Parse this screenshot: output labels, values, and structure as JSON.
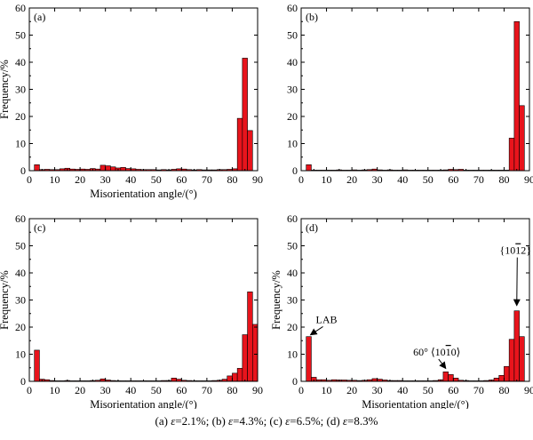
{
  "chart_data": [
    {
      "type": "bar",
      "panel_label": "(a)",
      "xlabel": "Misorientation angle/(°)",
      "ylabel": "Frequency/%",
      "xlim": [
        0,
        90
      ],
      "ylim": [
        0,
        60
      ],
      "xticks": [
        "0",
        "10",
        "20",
        "30",
        "40",
        "50",
        "60",
        "70",
        "80",
        "90"
      ],
      "yticks": [
        "0",
        "10",
        "20",
        "30",
        "40",
        "50",
        "60"
      ],
      "bin_width": 2,
      "bar_color": "#e8141c",
      "x": [
        3,
        5,
        7,
        9,
        11,
        13,
        15,
        17,
        19,
        21,
        23,
        25,
        27,
        29,
        31,
        33,
        35,
        37,
        39,
        41,
        43,
        45,
        47,
        49,
        51,
        53,
        55,
        57,
        59,
        61,
        63,
        65,
        67,
        69,
        71,
        73,
        75,
        77,
        79,
        81,
        83,
        85,
        87,
        89
      ],
      "values": [
        2.2,
        0.4,
        0.5,
        0.4,
        0.4,
        0.7,
        0.9,
        0.6,
        0.5,
        0.6,
        0.5,
        0.8,
        0.6,
        2.0,
        1.8,
        1.4,
        1.0,
        1.2,
        0.8,
        0.7,
        0.5,
        0.4,
        0.4,
        0.4,
        0.3,
        0.4,
        0.3,
        0.5,
        0.7,
        0.6,
        0.4,
        0.3,
        0.4,
        0.3,
        0.3,
        0.3,
        0.4,
        0.4,
        0.5,
        0.7,
        19.3,
        41.5,
        14.8,
        0.0
      ]
    },
    {
      "type": "bar",
      "panel_label": "(b)",
      "xlabel": "",
      "ylabel": "",
      "xlim": [
        0,
        90
      ],
      "ylim": [
        0,
        60
      ],
      "xticks": [
        "0",
        "10",
        "20",
        "30",
        "40",
        "50",
        "60",
        "70",
        "80",
        "90"
      ],
      "yticks": [
        "0",
        "10",
        "20",
        "30",
        "40",
        "50",
        "60"
      ],
      "bin_width": 2,
      "bar_color": "#e8141c",
      "x": [
        3,
        5,
        7,
        9,
        11,
        13,
        15,
        17,
        19,
        21,
        23,
        25,
        27,
        29,
        31,
        33,
        35,
        37,
        39,
        41,
        43,
        45,
        47,
        49,
        51,
        53,
        55,
        57,
        59,
        61,
        63,
        65,
        67,
        69,
        71,
        73,
        75,
        77,
        79,
        81,
        83,
        85,
        87,
        89
      ],
      "values": [
        2.2,
        0.2,
        0.2,
        0.2,
        0.2,
        0.2,
        0.3,
        0.2,
        0.2,
        0.3,
        0.2,
        0.3,
        0.4,
        0.6,
        0.3,
        0.2,
        0.3,
        0.2,
        0.2,
        0.3,
        0.2,
        0.2,
        0.2,
        0.2,
        0.2,
        0.2,
        0.2,
        0.3,
        0.5,
        0.4,
        0.5,
        0.2,
        0.2,
        0.2,
        0.2,
        0.2,
        0.2,
        0.2,
        0.2,
        0.2,
        12.0,
        55.0,
        24.0,
        0.0
      ]
    },
    {
      "type": "bar",
      "panel_label": "(c)",
      "xlabel": "Misorientation angle/(°)",
      "ylabel": "Frequency/%",
      "xlim": [
        0,
        90
      ],
      "ylim": [
        0,
        60
      ],
      "xticks": [
        "0",
        "10",
        "20",
        "30",
        "40",
        "50",
        "60",
        "70",
        "80",
        "90"
      ],
      "yticks": [
        "0",
        "10",
        "20",
        "30",
        "40",
        "50",
        "60"
      ],
      "bin_width": 2,
      "bar_color": "#e8141c",
      "x": [
        3,
        5,
        7,
        9,
        11,
        13,
        15,
        17,
        19,
        21,
        23,
        25,
        27,
        29,
        31,
        33,
        35,
        37,
        39,
        41,
        43,
        45,
        47,
        49,
        51,
        53,
        55,
        57,
        59,
        61,
        63,
        65,
        67,
        69,
        71,
        73,
        75,
        77,
        79,
        81,
        83,
        85,
        87,
        89
      ],
      "values": [
        11.5,
        0.8,
        0.6,
        0.3,
        0.2,
        0.2,
        0.3,
        0.2,
        0.2,
        0.2,
        0.2,
        0.3,
        0.4,
        0.9,
        0.5,
        0.3,
        0.2,
        0.2,
        0.2,
        0.2,
        0.2,
        0.2,
        0.2,
        0.2,
        0.2,
        0.3,
        0.3,
        1.2,
        0.8,
        0.4,
        0.3,
        0.2,
        0.2,
        0.2,
        0.2,
        0.3,
        0.4,
        0.8,
        2.0,
        3.0,
        4.8,
        17.2,
        33.0,
        21.0
      ]
    },
    {
      "type": "bar",
      "panel_label": "(d)",
      "xlabel": "Misorientation angle/(°)",
      "ylabel": "Frequency/%",
      "xlim": [
        0,
        90
      ],
      "ylim": [
        0,
        60
      ],
      "xticks": [
        "0",
        "10",
        "20",
        "30",
        "40",
        "50",
        "60",
        "70",
        "80",
        "90"
      ],
      "yticks": [
        "0",
        "10",
        "20",
        "30",
        "40",
        "50",
        "60"
      ],
      "bin_width": 2,
      "bar_color": "#e8141c",
      "x": [
        3,
        5,
        7,
        9,
        11,
        13,
        15,
        17,
        19,
        21,
        23,
        25,
        27,
        29,
        31,
        33,
        35,
        37,
        39,
        41,
        43,
        45,
        47,
        49,
        51,
        53,
        55,
        57,
        59,
        61,
        63,
        65,
        67,
        69,
        71,
        73,
        75,
        77,
        79,
        81,
        83,
        85,
        87,
        89
      ],
      "values": [
        16.5,
        1.5,
        0.6,
        0.6,
        0.4,
        0.6,
        0.5,
        0.5,
        0.4,
        0.4,
        0.3,
        0.4,
        0.6,
        1.0,
        0.8,
        0.5,
        0.3,
        0.3,
        0.3,
        0.2,
        0.2,
        0.2,
        0.2,
        0.2,
        0.2,
        0.3,
        0.6,
        3.5,
        2.5,
        1.2,
        0.4,
        0.3,
        0.2,
        0.2,
        0.2,
        0.3,
        0.5,
        1.2,
        2.2,
        5.5,
        15.5,
        26.0,
        16.5,
        0.0
      ],
      "annotations": [
        {
          "text": "LAB",
          "x": 10,
          "y": 21.5,
          "arrow_to_x": 3,
          "arrow_to_y": 16.5
        },
        {
          "text_prefix": "60° ⟨10",
          "text_bar": "1",
          "text_suffix": "0⟩",
          "x": 53.5,
          "y": 9.5,
          "arrow_to_x": 57,
          "arrow_to_y": 3.8
        },
        {
          "text_prefix": "{10",
          "text_bar": "1",
          "text_suffix": "2}",
          "x": 84.5,
          "y": 47,
          "arrow_to_x": 85,
          "arrow_to_y": 27
        }
      ]
    }
  ],
  "caption": {
    "a_label": "(a) ",
    "a_var": "ε",
    "a_value": "=2.1%;  (b)   ",
    "b_var": "ε",
    "b_value": "=4.3%; (c) ",
    "c_var": "ε",
    "c_value": "=6.5%; (d) ",
    "d_var": "ε",
    "d_value": "=8.3%"
  }
}
